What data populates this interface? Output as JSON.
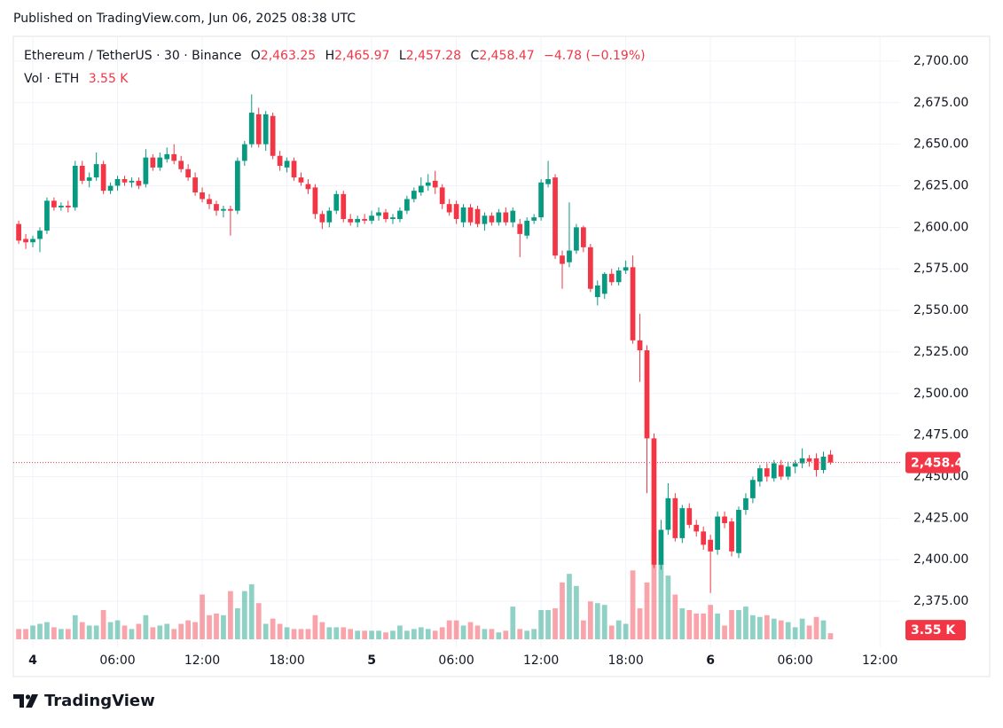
{
  "published": "Published on TradingView.com, Jun 06, 2025 08:38 UTC",
  "branding": "TradingView",
  "chart_data": {
    "type": "candlestick",
    "legend": {
      "symbol": "Ethereum / TetherUS · 30 · Binance",
      "open_label": "O",
      "open": "2,463.25",
      "high_label": "H",
      "high": "2,465.97",
      "low_label": "L",
      "low": "2,457.28",
      "close_label": "C",
      "close": "2,458.47",
      "change": "−4.78 (−0.19%)",
      "volume_label": "Vol · ETH",
      "volume": "3.55 K"
    },
    "up_color": "#089981",
    "down_color": "#f23645",
    "grid": true,
    "x": [
      "2025-06-03T23:00",
      "2025-06-03T23:30",
      "2025-06-04T00:00",
      "2025-06-04T00:30",
      "2025-06-04T01:00",
      "2025-06-04T01:30",
      "2025-06-04T02:00",
      "2025-06-04T02:30",
      "2025-06-04T03:00",
      "2025-06-04T03:30",
      "2025-06-04T04:00",
      "2025-06-04T04:30",
      "2025-06-04T05:00",
      "2025-06-04T05:30",
      "2025-06-04T06:00",
      "2025-06-04T06:30",
      "2025-06-04T07:00",
      "2025-06-04T07:30",
      "2025-06-04T08:00",
      "2025-06-04T08:30",
      "2025-06-04T09:00",
      "2025-06-04T09:30",
      "2025-06-04T10:00",
      "2025-06-04T10:30",
      "2025-06-04T11:00",
      "2025-06-04T11:30",
      "2025-06-04T12:00",
      "2025-06-04T12:30",
      "2025-06-04T13:00",
      "2025-06-04T13:30",
      "2025-06-04T14:00",
      "2025-06-04T14:30",
      "2025-06-04T15:00",
      "2025-06-04T15:30",
      "2025-06-04T16:00",
      "2025-06-04T16:30",
      "2025-06-04T17:00",
      "2025-06-04T17:30",
      "2025-06-04T18:00",
      "2025-06-04T18:30",
      "2025-06-04T19:00",
      "2025-06-04T19:30",
      "2025-06-04T20:00",
      "2025-06-04T20:30",
      "2025-06-04T21:00",
      "2025-06-04T21:30",
      "2025-06-04T22:00",
      "2025-06-04T22:30",
      "2025-06-04T23:00",
      "2025-06-04T23:30",
      "2025-06-05T00:00",
      "2025-06-05T00:30",
      "2025-06-05T01:00",
      "2025-06-05T01:30",
      "2025-06-05T02:00",
      "2025-06-05T02:30",
      "2025-06-05T03:00",
      "2025-06-05T03:30",
      "2025-06-05T04:00",
      "2025-06-05T04:30",
      "2025-06-05T05:00",
      "2025-06-05T05:30",
      "2025-06-05T06:00",
      "2025-06-05T06:30",
      "2025-06-05T07:00",
      "2025-06-05T07:30",
      "2025-06-05T08:00",
      "2025-06-05T08:30",
      "2025-06-05T09:00",
      "2025-06-05T09:30",
      "2025-06-05T10:00",
      "2025-06-05T10:30",
      "2025-06-05T11:00",
      "2025-06-05T11:30",
      "2025-06-05T12:00",
      "2025-06-05T12:30",
      "2025-06-05T13:00",
      "2025-06-05T13:30",
      "2025-06-05T14:00",
      "2025-06-05T14:30",
      "2025-06-05T15:00",
      "2025-06-05T15:30",
      "2025-06-05T16:00",
      "2025-06-05T16:30",
      "2025-06-05T17:00",
      "2025-06-05T17:30",
      "2025-06-05T18:00",
      "2025-06-05T18:30",
      "2025-06-05T19:00",
      "2025-06-05T19:30",
      "2025-06-05T20:00",
      "2025-06-05T20:30",
      "2025-06-05T21:00",
      "2025-06-05T21:30",
      "2025-06-05T22:00",
      "2025-06-05T22:30",
      "2025-06-05T23:00",
      "2025-06-05T23:30",
      "2025-06-06T00:00",
      "2025-06-06T00:30",
      "2025-06-06T01:00",
      "2025-06-06T01:30",
      "2025-06-06T02:00",
      "2025-06-06T02:30",
      "2025-06-06T03:00",
      "2025-06-06T03:30",
      "2025-06-06T04:00",
      "2025-06-06T04:30",
      "2025-06-06T05:00",
      "2025-06-06T05:30",
      "2025-06-06T06:00",
      "2025-06-06T06:30",
      "2025-06-06T07:00",
      "2025-06-06T07:30",
      "2025-06-06T08:00",
      "2025-06-06T08:30"
    ],
    "open": [
      2602,
      2593,
      2591,
      2593,
      2598,
      2616,
      2612,
      2613,
      2612,
      2637,
      2628,
      2630,
      2638,
      2622,
      2625,
      2629,
      2627,
      2628,
      2626,
      2642,
      2636,
      2641,
      2644,
      2640,
      2635,
      2630,
      2621,
      2617,
      2614,
      2610,
      2611,
      2610,
      2640,
      2650,
      2668,
      2650,
      2667,
      2643,
      2636,
      2640,
      2630,
      2626,
      2624,
      2608,
      2603,
      2610,
      2620,
      2605,
      2603,
      2605,
      2604,
      2607,
      2609,
      2605,
      2605,
      2610,
      2617,
      2621,
      2625,
      2628,
      2624,
      2614,
      2614,
      2603,
      2612,
      2611,
      2602,
      2607,
      2603,
      2609,
      2603,
      2602,
      2595,
      2604,
      2606,
      2626,
      2630,
      2583,
      2579,
      2586,
      2600,
      2588,
      2558,
      2560,
      2572,
      2567,
      2574,
      2576,
      2532,
      2526,
      2473,
      2397,
      2418,
      2437,
      2413,
      2431,
      2421,
      2417,
      2412,
      2406,
      2426,
      2423,
      2404,
      2430,
      2437,
      2447,
      2455,
      2449,
      2457,
      2450,
      2456,
      2458,
      2461,
      2461,
      2454,
      2463.25
    ],
    "high": [
      2604,
      2596,
      2595,
      2600,
      2618,
      2618,
      2615,
      2616,
      2640,
      2640,
      2633,
      2645,
      2640,
      2627,
      2631,
      2631,
      2630,
      2630,
      2647,
      2644,
      2645,
      2648,
      2650,
      2643,
      2638,
      2633,
      2624,
      2620,
      2616,
      2613,
      2613,
      2642,
      2652,
      2680,
      2672,
      2670,
      2669,
      2646,
      2642,
      2642,
      2633,
      2629,
      2626,
      2610,
      2612,
      2622,
      2622,
      2608,
      2607,
      2608,
      2610,
      2612,
      2611,
      2608,
      2612,
      2619,
      2624,
      2630,
      2632,
      2634,
      2626,
      2617,
      2616,
      2614,
      2614,
      2613,
      2609,
      2609,
      2611,
      2612,
      2612,
      2605,
      2606,
      2608,
      2629,
      2640,
      2632,
      2586,
      2615,
      2602,
      2601,
      2590,
      2568,
      2573,
      2575,
      2576,
      2580,
      2583,
      2548,
      2529,
      2476,
      2424,
      2446,
      2440,
      2433,
      2434,
      2424,
      2420,
      2415,
      2429,
      2429,
      2425,
      2432,
      2440,
      2450,
      2457,
      2458,
      2460,
      2460,
      2459,
      2460,
      2467,
      2463,
      2464,
      2465,
      2465.97
    ],
    "low": [
      2590,
      2587,
      2588,
      2585,
      2596,
      2610,
      2610,
      2609,
      2610,
      2626,
      2624,
      2628,
      2620,
      2620,
      2622,
      2625,
      2624,
      2623,
      2624,
      2634,
      2634,
      2639,
      2638,
      2633,
      2628,
      2619,
      2615,
      2611,
      2607,
      2606,
      2595,
      2608,
      2637,
      2648,
      2648,
      2646,
      2641,
      2634,
      2633,
      2628,
      2625,
      2620,
      2605,
      2599,
      2600,
      2608,
      2603,
      2601,
      2600,
      2602,
      2602,
      2604,
      2603,
      2602,
      2603,
      2608,
      2615,
      2619,
      2622,
      2620,
      2611,
      2607,
      2602,
      2600,
      2601,
      2600,
      2598,
      2601,
      2601,
      2601,
      2600,
      2582,
      2593,
      2602,
      2604,
      2624,
      2581,
      2563,
      2576,
      2584,
      2585,
      2561,
      2553,
      2557,
      2565,
      2565,
      2572,
      2530,
      2507,
      2440,
      2395,
      2394,
      2415,
      2411,
      2410,
      2419,
      2414,
      2406,
      2380,
      2403,
      2419,
      2402,
      2401,
      2427,
      2434,
      2444,
      2447,
      2447,
      2448,
      2448,
      2452,
      2455,
      2456,
      2450,
      2452,
      2457.28
    ],
    "close": [
      2592,
      2591,
      2593,
      2598,
      2616,
      2612,
      2613,
      2612,
      2637,
      2628,
      2630,
      2638,
      2622,
      2625,
      2629,
      2627,
      2628,
      2625,
      2642,
      2636,
      2642,
      2644,
      2640,
      2635,
      2630,
      2621,
      2617,
      2614,
      2610,
      2611,
      2610,
      2640,
      2650,
      2669,
      2650,
      2668,
      2643,
      2637,
      2640,
      2630,
      2627,
      2623,
      2608,
      2603,
      2610,
      2620,
      2605,
      2603,
      2605,
      2604,
      2607,
      2609,
      2605,
      2606,
      2610,
      2617,
      2622,
      2625,
      2627,
      2624,
      2614,
      2609,
      2605,
      2612,
      2603,
      2602,
      2607,
      2603,
      2609,
      2603,
      2610,
      2596,
      2604,
      2606,
      2627,
      2629,
      2583,
      2578,
      2586,
      2600,
      2588,
      2563,
      2565,
      2572,
      2567,
      2574,
      2576,
      2532,
      2526,
      2473,
      2397,
      2418,
      2437,
      2413,
      2431,
      2421,
      2417,
      2409,
      2405,
      2426,
      2422,
      2405,
      2430,
      2437,
      2448,
      2455,
      2450,
      2458,
      2450,
      2456,
      2458,
      2461,
      2459,
      2454,
      2462,
      2458.47
    ],
    "volume": [
      6,
      6,
      8,
      9,
      10,
      7,
      6,
      6,
      14,
      10,
      8,
      8,
      17,
      10,
      11,
      8,
      6,
      9,
      14,
      7,
      8,
      9,
      6,
      9,
      11,
      10,
      26,
      14,
      15,
      14,
      28,
      18,
      28,
      32,
      21,
      9,
      12,
      9,
      7,
      6,
      6,
      6,
      14,
      10,
      7,
      7,
      7,
      6,
      5,
      5,
      5,
      5,
      4,
      5,
      8,
      5,
      6,
      7,
      6,
      5,
      7,
      11,
      11,
      8,
      10,
      8,
      6,
      6,
      4,
      5,
      19,
      6,
      5,
      6,
      17,
      17,
      18,
      33,
      38,
      31,
      11,
      22,
      21,
      20,
      8,
      11,
      9,
      40,
      18,
      33,
      63,
      44,
      37,
      26,
      18,
      17,
      15,
      15,
      20,
      15,
      8,
      17,
      17,
      19,
      14,
      13,
      14,
      12,
      11,
      10,
      7,
      12,
      8,
      13,
      11,
      3.55
    ],
    "xlim": [
      "2025-06-03T22:37",
      "2025-06-06T13:26"
    ],
    "xticks": [
      {
        "value": "2025-06-04T00:00",
        "label": "4"
      },
      {
        "value": "2025-06-04T06:00",
        "label": "06:00"
      },
      {
        "value": "2025-06-04T12:00",
        "label": "12:00"
      },
      {
        "value": "2025-06-04T18:00",
        "label": "18:00"
      },
      {
        "value": "2025-06-05T00:00",
        "label": "5"
      },
      {
        "value": "2025-06-05T06:00",
        "label": "06:00"
      },
      {
        "value": "2025-06-05T12:00",
        "label": "12:00"
      },
      {
        "value": "2025-06-05T18:00",
        "label": "18:00"
      },
      {
        "value": "2025-06-06T00:00",
        "label": "6"
      },
      {
        "value": "2025-06-06T06:00",
        "label": "06:00"
      },
      {
        "value": "2025-06-06T12:00",
        "label": "12:00"
      }
    ],
    "ylim": [
      2347.3,
      2714.9
    ],
    "yticks": [
      {
        "value": 2375,
        "label": "2,375.00"
      },
      {
        "value": 2400,
        "label": "2,400.00"
      },
      {
        "value": 2425,
        "label": "2,425.00"
      },
      {
        "value": 2450,
        "label": "2,450.00"
      },
      {
        "value": 2475,
        "label": "2,475.00"
      },
      {
        "value": 2500,
        "label": "2,500.00"
      },
      {
        "value": 2525,
        "label": "2,525.00"
      },
      {
        "value": 2550,
        "label": "2,550.00"
      },
      {
        "value": 2575,
        "label": "2,575.00"
      },
      {
        "value": 2600,
        "label": "2,600.00"
      },
      {
        "value": 2625,
        "label": "2,625.00"
      },
      {
        "value": 2650,
        "label": "2,650.00"
      },
      {
        "value": 2675,
        "label": "2,675.00"
      },
      {
        "value": 2700,
        "label": "2,700.00"
      }
    ],
    "y2lim": [
      0,
      350
    ]
  }
}
